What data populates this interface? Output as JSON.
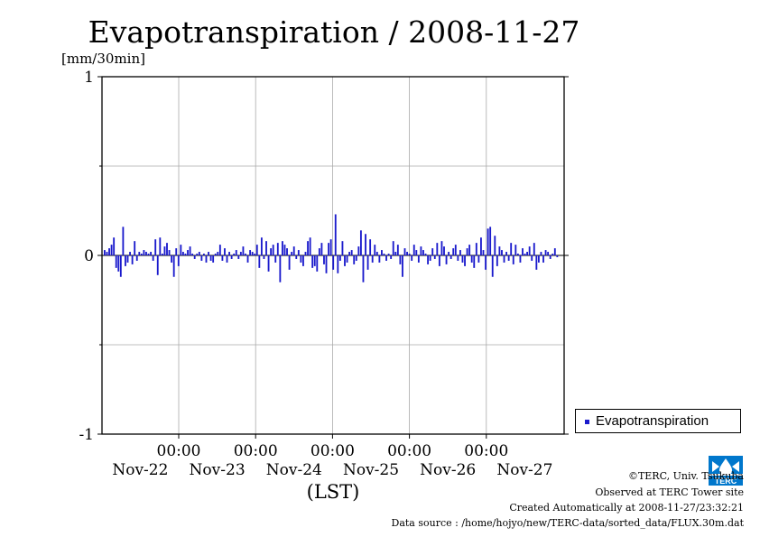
{
  "title": "Evapotranspiration / 2008-11-27",
  "colors": {
    "series": "#1a1acc",
    "grid": "#aaaaaa",
    "axis": "#000000",
    "logo": "#0077cc"
  },
  "chart_data": {
    "type": "bar",
    "title": "Evapotranspiration / 2008-11-27",
    "ylabel": "[mm/30min]",
    "xlabel": "(LST)",
    "ylim": [
      -1,
      1
    ],
    "yticks": [
      "1",
      "0",
      "-1"
    ],
    "x_time_labels": [
      "00:00",
      "00:00",
      "00:00",
      "00:00",
      "00:00"
    ],
    "x_date_labels": [
      "Nov-22",
      "Nov-23",
      "Nov-24",
      "Nov-25",
      "Nov-26",
      "Nov-27"
    ],
    "grid": true,
    "legend_position": "bottom-right, outside plot",
    "series": [
      {
        "name": "Evapotranspiration",
        "values": [
          0.03,
          0.02,
          0.04,
          0.06,
          0.1,
          -0.07,
          -0.09,
          -0.12,
          0.16,
          -0.06,
          -0.04,
          0.02,
          -0.05,
          0.08,
          -0.03,
          0.02,
          0.01,
          0.03,
          0.02,
          0.01,
          0.02,
          -0.03,
          0.09,
          -0.11,
          0.1,
          0.01,
          0.05,
          0.07,
          0.03,
          -0.04,
          -0.12,
          0.04,
          -0.06,
          0.06,
          0.02,
          0.01,
          0.03,
          0.05,
          0.01,
          -0.02,
          0.01,
          0.02,
          -0.03,
          0.01,
          -0.04,
          0.02,
          -0.03,
          -0.04,
          0.01,
          0.02,
          0.06,
          -0.03,
          0.04,
          -0.04,
          0.02,
          -0.02,
          0.01,
          0.03,
          -0.02,
          0.02,
          0.05,
          0.01,
          -0.04,
          0.03,
          0.02,
          0.01,
          0.06,
          -0.07,
          0.1,
          -0.02,
          0.08,
          -0.09,
          0.04,
          0.06,
          -0.04,
          0.07,
          -0.15,
          0.08,
          0.06,
          0.04,
          -0.08,
          0.02,
          0.05,
          -0.02,
          0.03,
          -0.04,
          -0.06,
          0.02,
          0.08,
          0.1,
          -0.07,
          -0.06,
          -0.09,
          0.04,
          0.07,
          -0.05,
          -0.1,
          0.07,
          0.09,
          -0.08,
          0.23,
          -0.1,
          -0.03,
          0.08,
          -0.06,
          -0.04,
          0.02,
          0.03,
          -0.05,
          -0.03,
          0.05,
          0.14,
          -0.15,
          0.12,
          -0.08,
          0.09,
          -0.04,
          0.06,
          0.02,
          -0.04,
          0.03,
          0.01,
          -0.03,
          0.01,
          -0.02,
          0.08,
          0.02,
          0.06,
          -0.05,
          -0.12,
          0.04,
          0.02,
          0.01,
          -0.03,
          0.06,
          0.03,
          -0.04,
          0.05,
          0.03,
          0.01,
          -0.05,
          -0.03,
          0.04,
          -0.02,
          0.07,
          -0.06,
          0.08,
          0.05,
          -0.05,
          0.02,
          -0.02,
          0.04,
          0.06,
          -0.03,
          0.03,
          -0.04,
          -0.06,
          0.04,
          0.06,
          -0.04,
          -0.07,
          0.07,
          -0.04,
          0.1,
          0.03,
          -0.08,
          0.15,
          0.16,
          -0.12,
          0.11,
          -0.06,
          0.05,
          0.03,
          -0.04,
          0.02,
          -0.03,
          0.07,
          -0.05,
          0.06,
          0.01,
          -0.04,
          0.04,
          0.01,
          0.02,
          0.05,
          -0.03,
          0.07,
          -0.08,
          -0.04,
          0.02,
          -0.04,
          0.03,
          0.02,
          -0.02,
          0.01,
          0.04,
          -0.01
        ]
      }
    ]
  },
  "footer": {
    "copyright": "©TERC, Univ. Tsukuba",
    "observed": "Observed at TERC Tower site",
    "created": "Created Automatically at 2008-11-27/23:32:21",
    "source": "Data source : /home/hojyo/new/TERC-data/sorted_data/FLUX.30m.dat"
  },
  "logo_text": "TERC"
}
